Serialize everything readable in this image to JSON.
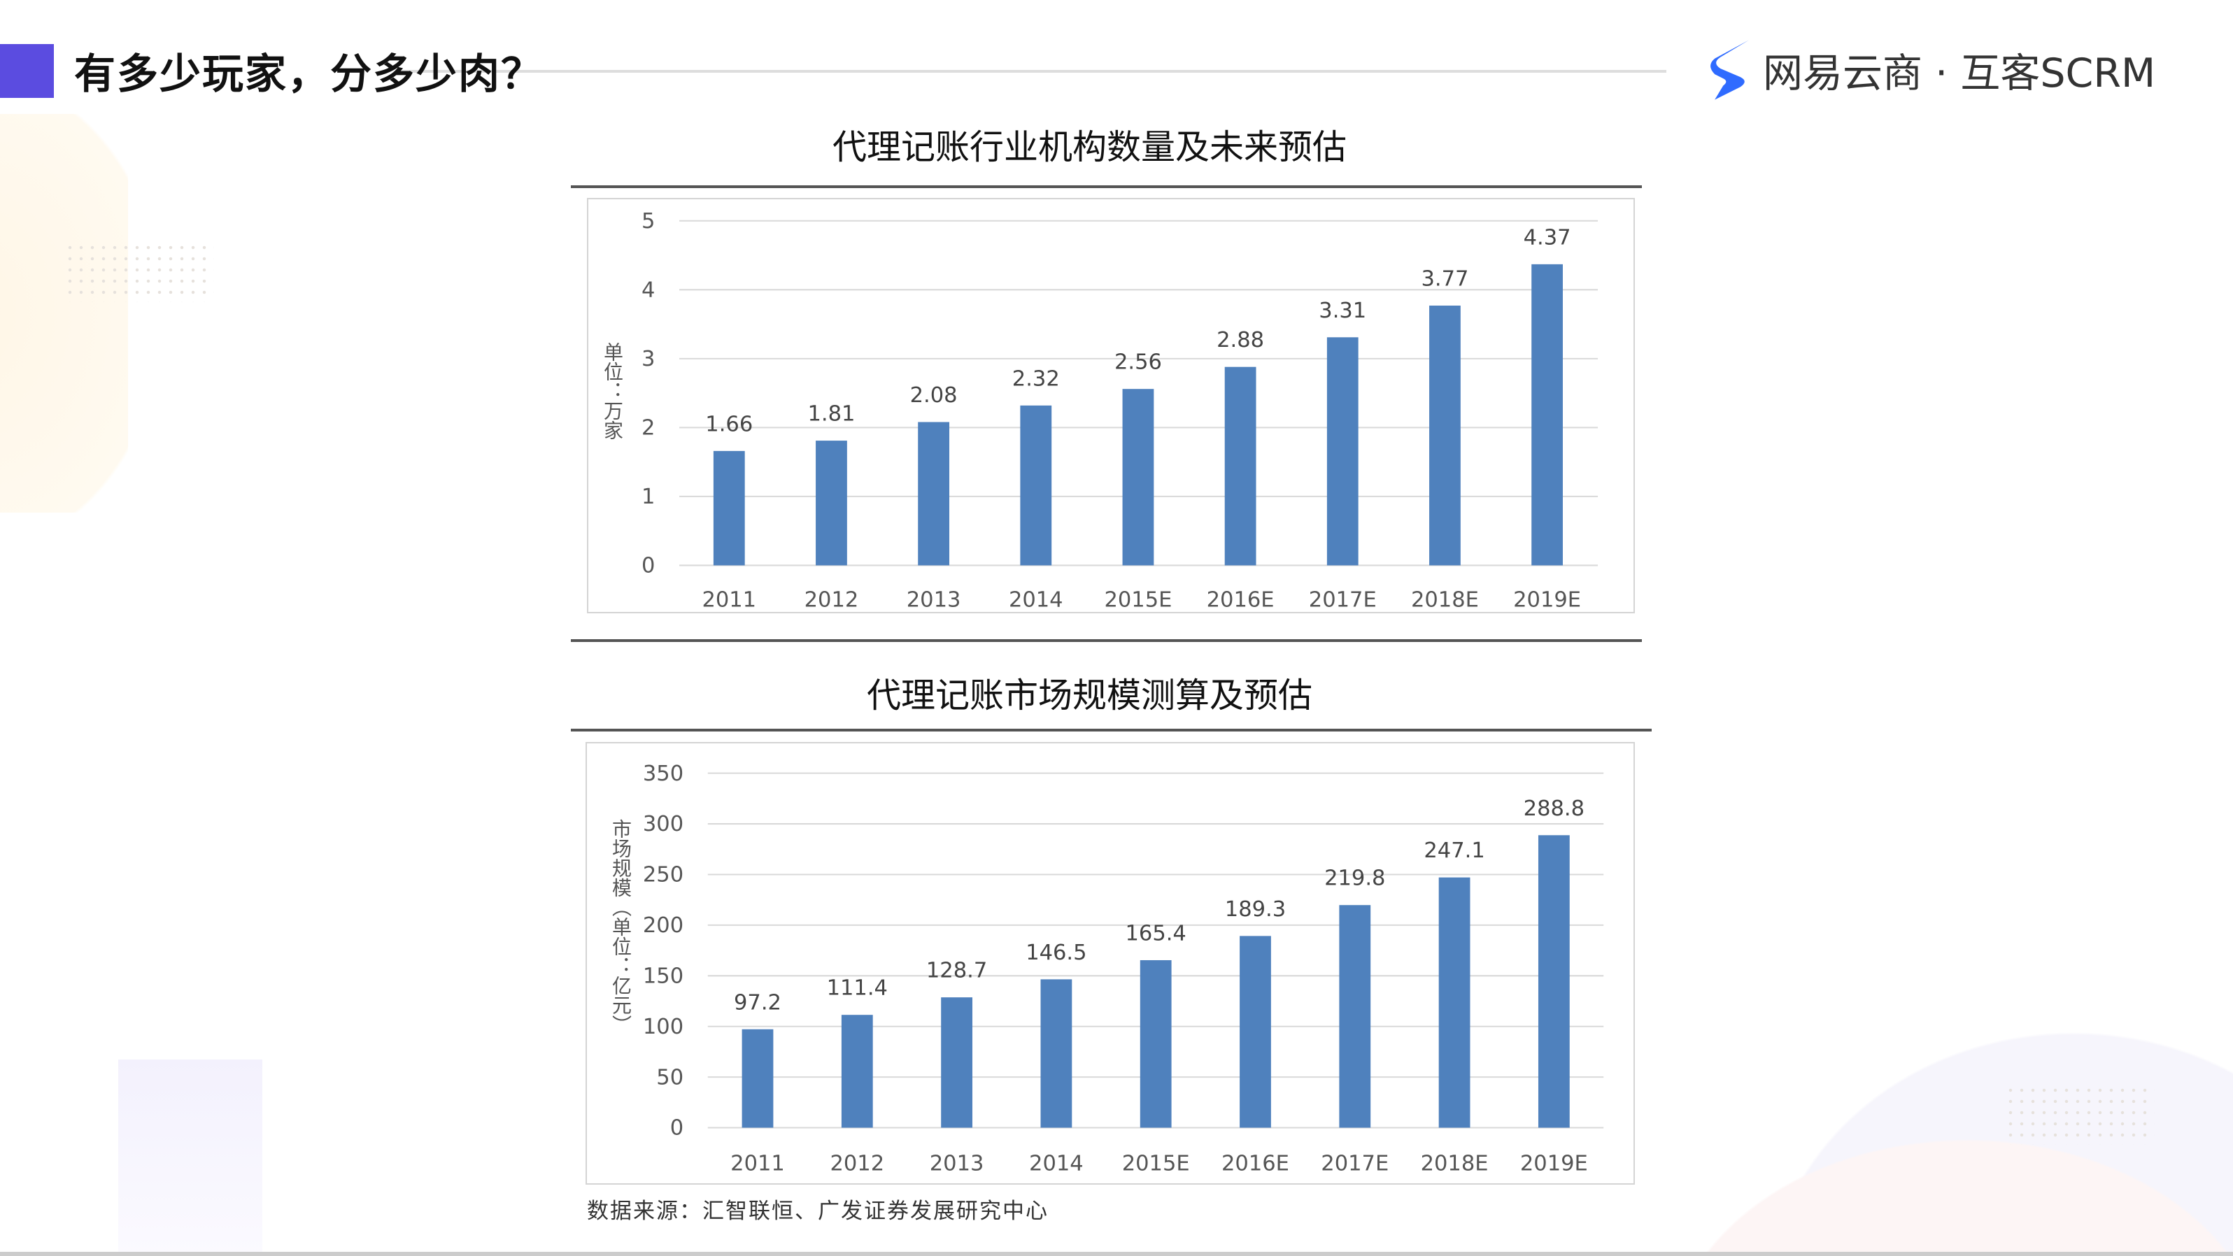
{
  "header": {
    "title": "有多少玩家，分多少肉？",
    "logo_text": "网易云商 · 互客SCRM",
    "accent_color": "#5b4ce0",
    "logo_color": "#2f6bff"
  },
  "source": "数据来源：汇智联恒、广发证券发展研究中心",
  "chart_data": [
    {
      "type": "bar",
      "title": "代理记账行业机构数量及未来预估",
      "ylabel": "单位：万家",
      "categories": [
        "2011",
        "2012",
        "2013",
        "2014",
        "2015E",
        "2016E",
        "2017E",
        "2018E",
        "2019E"
      ],
      "values": [
        1.66,
        1.81,
        2.08,
        2.32,
        2.56,
        2.88,
        3.31,
        3.77,
        4.37
      ],
      "ylim": [
        0,
        5
      ],
      "yticks": [
        0,
        1,
        2,
        3,
        4,
        5
      ],
      "grid": true,
      "bar_color": "#4f81bd"
    },
    {
      "type": "bar",
      "title": "代理记账市场规模测算及预估",
      "ylabel": "市场规模（单位：亿元）",
      "categories": [
        "2011",
        "2012",
        "2013",
        "2014",
        "2015E",
        "2016E",
        "2017E",
        "2018E",
        "2019E"
      ],
      "values": [
        97.2,
        111.4,
        128.7,
        146.5,
        165.4,
        189.3,
        219.8,
        247.1,
        288.8
      ],
      "ylim": [
        0,
        350
      ],
      "yticks": [
        0,
        50,
        100,
        150,
        200,
        250,
        300,
        350
      ],
      "grid": true,
      "bar_color": "#4f81bd"
    }
  ]
}
